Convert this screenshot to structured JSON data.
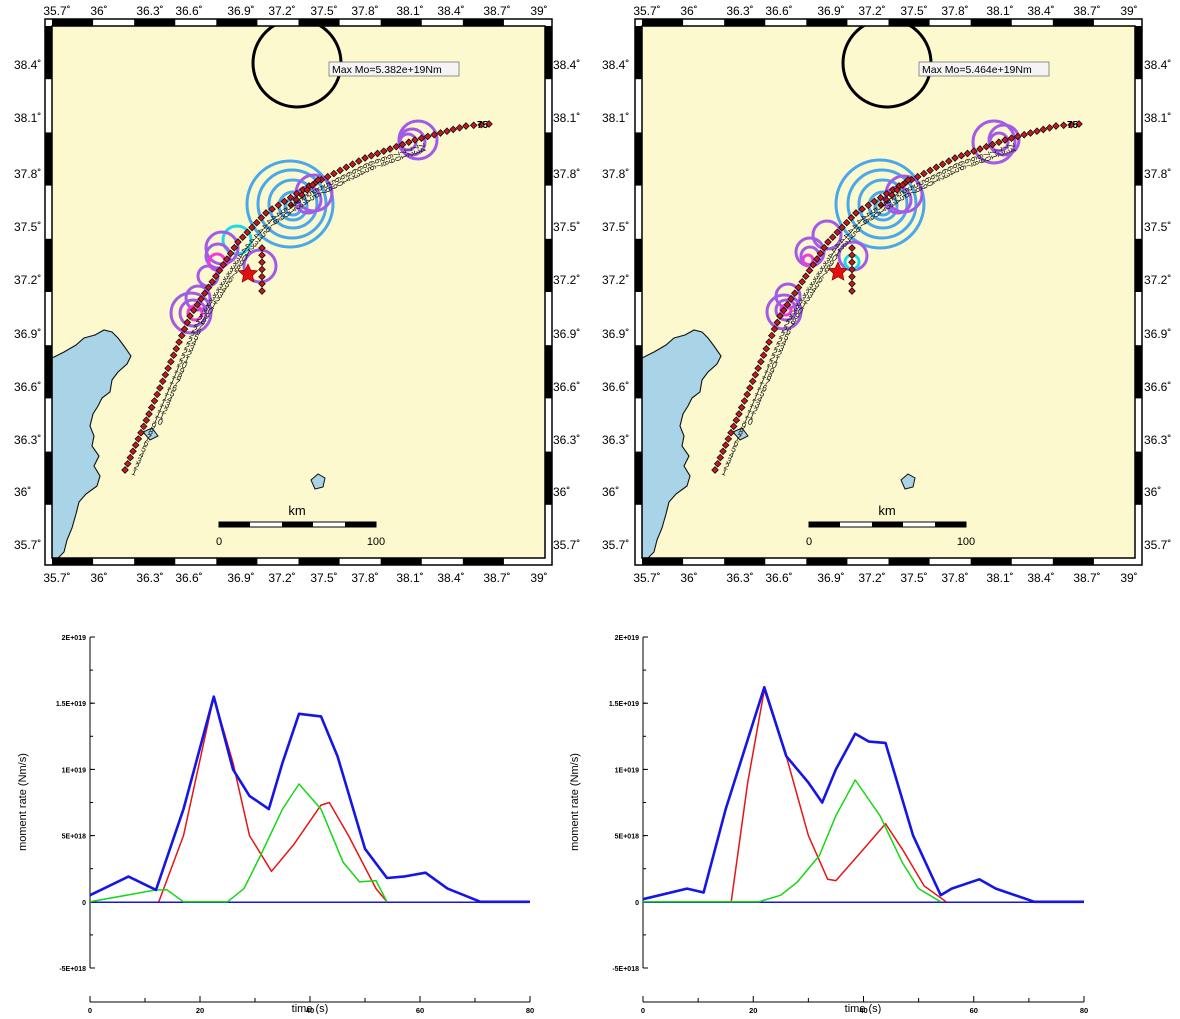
{
  "maps": [
    {
      "annotation": "Max Mo=5.382e+19Nm",
      "scale": {
        "label": "km",
        "ticks": [
          "0",
          "100"
        ]
      },
      "x_ticks": [
        "35.7˚",
        "36˚",
        "36.3˚",
        "36.6˚",
        "36.9˚",
        "37.2˚",
        "37.5˚",
        "37.8˚",
        "38.1˚",
        "38.4˚",
        "38.7˚",
        "39˚"
      ],
      "y_ticks": [
        "38.4˚",
        "38.1˚",
        "37.8˚",
        "37.5˚",
        "37.2˚",
        "36.9˚",
        "36.6˚",
        "36.3˚",
        "36˚",
        "35.7˚"
      ]
    },
    {
      "annotation": "Max Mo=5.464e+19Nm",
      "scale": {
        "label": "km",
        "ticks": [
          "0",
          "100"
        ]
      },
      "x_ticks": [
        "35.7˚",
        "36˚",
        "36.3˚",
        "36.6˚",
        "36.9˚",
        "37.2˚",
        "37.5˚",
        "37.8˚",
        "38.1˚",
        "38.4˚",
        "38.7˚",
        "39˚"
      ],
      "y_ticks": [
        "38.4˚",
        "38.1˚",
        "37.8˚",
        "37.5˚",
        "37.2˚",
        "36.9˚",
        "36.6˚",
        "36.3˚",
        "36˚",
        "35.7˚"
      ]
    }
  ],
  "colors": {
    "land": "#fbf9cd",
    "sea": "#a9d3e6",
    "fault_marker": "#c8161d",
    "epicenter_star": "#e01010",
    "circle_purple": "#a35ae6",
    "circle_blue": "#4aa8ea",
    "circle_cyan": "#1fd9ea",
    "circle_magenta": "#ee3bd9",
    "total": "#1515e6",
    "segment_a": "#e61515",
    "segment_b": "#15d815"
  },
  "chart_data": [
    {
      "type": "line",
      "xlabel": "time (s)",
      "ylabel": "moment rate (Nm/s)",
      "xlim": [
        0,
        80
      ],
      "ylim": [
        -5e+18,
        2e+19
      ],
      "x_ticks": [
        "0",
        "20",
        "40",
        "60",
        "80"
      ],
      "y_ticks": [
        "-5E+018",
        "0",
        "5E+018",
        "1E+019",
        "1.5E+019",
        "2E+019"
      ],
      "series": [
        {
          "color": "#e61515",
          "points": [
            [
              12.5,
              0
            ],
            [
              17,
              5e+18
            ],
            [
              22.5,
              1.55e+19
            ],
            [
              26,
              1.05e+19
            ],
            [
              29,
              5e+18
            ],
            [
              33,
              2.3e+18
            ],
            [
              37,
              4.3e+18
            ],
            [
              42,
              7.3e+18
            ],
            [
              43.5,
              7.5e+18
            ],
            [
              47,
              5e+18
            ],
            [
              52,
              1e+18
            ],
            [
              54,
              0
            ]
          ]
        },
        {
          "color": "#15d815",
          "points": [
            [
              0,
              0
            ],
            [
              12,
              9e+17
            ],
            [
              14,
              9e+17
            ],
            [
              17,
              0
            ],
            [
              25,
              0
            ],
            [
              28,
              1e+18
            ],
            [
              31,
              3.5e+18
            ],
            [
              35,
              7e+18
            ],
            [
              38,
              8.9e+18
            ],
            [
              42,
              7e+18
            ],
            [
              46,
              3e+18
            ],
            [
              49,
              1.5e+18
            ],
            [
              52,
              1.6e+18
            ],
            [
              54,
              0
            ]
          ]
        },
        {
          "color": "#1515e6",
          "points": [
            [
              0,
              5e+17
            ],
            [
              7,
              1.9e+18
            ],
            [
              12,
              9e+17
            ],
            [
              17,
              7e+18
            ],
            [
              22.5,
              1.55e+19
            ],
            [
              26,
              1e+19
            ],
            [
              29,
              8e+18
            ],
            [
              32.5,
              7e+18
            ],
            [
              35,
              1.05e+19
            ],
            [
              38,
              1.42e+19
            ],
            [
              42,
              1.4e+19
            ],
            [
              45,
              1.1e+19
            ],
            [
              50,
              4e+18
            ],
            [
              54,
              1.8e+18
            ],
            [
              57,
              1.9e+18
            ],
            [
              61,
              2.2e+18
            ],
            [
              65,
              1e+18
            ],
            [
              71,
              0
            ],
            [
              80,
              0
            ]
          ]
        }
      ]
    },
    {
      "type": "line",
      "xlabel": "time (s)",
      "ylabel": "moment rate (Nm/s)",
      "xlim": [
        0,
        80
      ],
      "ylim": [
        -5e+18,
        2e+19
      ],
      "x_ticks": [
        "0",
        "20",
        "40",
        "60",
        "80"
      ],
      "y_ticks": [
        "-5E+018",
        "0",
        "5E+018",
        "1E+019",
        "1.5E+019",
        "2E+019"
      ],
      "series": [
        {
          "color": "#e61515",
          "points": [
            [
              16,
              0
            ],
            [
              19,
              9e+18
            ],
            [
              22,
              1.6e+19
            ],
            [
              26,
              1.1e+19
            ],
            [
              30,
              5e+18
            ],
            [
              33.5,
              1.7e+18
            ],
            [
              35,
              1.6e+18
            ],
            [
              39,
              3.5e+18
            ],
            [
              44,
              5.9e+18
            ],
            [
              47,
              4e+18
            ],
            [
              51,
              1.2e+18
            ],
            [
              55,
              0
            ]
          ]
        },
        {
          "color": "#15d815",
          "points": [
            [
              0,
              0
            ],
            [
              21,
              0
            ],
            [
              25,
              5e+17
            ],
            [
              28,
              1.5e+18
            ],
            [
              32,
              3.5e+18
            ],
            [
              35,
              6.5e+18
            ],
            [
              38.5,
              9.2e+18
            ],
            [
              43,
              6.5e+18
            ],
            [
              47,
              3e+18
            ],
            [
              50,
              1e+18
            ],
            [
              54,
              0
            ]
          ]
        },
        {
          "color": "#1515e6",
          "points": [
            [
              0,
              2e+17
            ],
            [
              8,
              1e+18
            ],
            [
              11,
              7e+17
            ],
            [
              15,
              7e+18
            ],
            [
              22,
              1.62e+19
            ],
            [
              26,
              1.1e+19
            ],
            [
              30,
              9e+18
            ],
            [
              32.5,
              7.5e+18
            ],
            [
              35,
              1e+19
            ],
            [
              38.5,
              1.27e+19
            ],
            [
              41,
              1.21e+19
            ],
            [
              44,
              1.2e+19
            ],
            [
              49,
              5e+18
            ],
            [
              54,
              5e+17
            ],
            [
              56,
              1e+18
            ],
            [
              61,
              1.7e+18
            ],
            [
              64,
              1e+18
            ],
            [
              71,
              0
            ],
            [
              80,
              0
            ]
          ]
        }
      ]
    }
  ]
}
